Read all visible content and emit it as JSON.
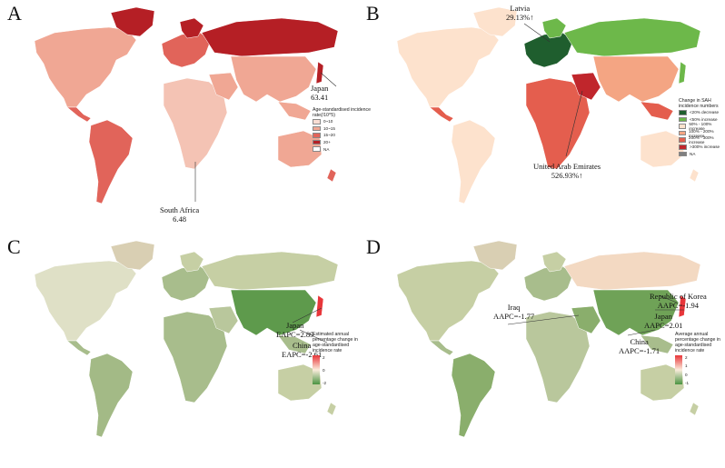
{
  "panels": {
    "a": {
      "label": "A",
      "legend": {
        "title": "Age-standardised incidence rate(/10^5)",
        "items": [
          {
            "label": "0~10",
            "color": "#f9ddd3"
          },
          {
            "label": "10~15",
            "color": "#f0a794"
          },
          {
            "label": "15~20",
            "color": "#e1645a"
          },
          {
            "label": "20+",
            "color": "#b51f25"
          },
          {
            "label": "NA",
            "color": "#ffffff"
          }
        ]
      },
      "annotations": [
        {
          "name": "Japan",
          "value": "63.41"
        },
        {
          "name": "South Africa",
          "value": "6.48"
        }
      ]
    },
    "b": {
      "label": "B",
      "legend": {
        "title": "Change in SAH incidence numbers",
        "items": [
          {
            "label": "<20% decrease",
            "color": "#1f5e2e"
          },
          {
            "label": "<50% increase",
            "color": "#6db84a"
          },
          {
            "label": "50% - 100% increase",
            "color": "#fde2cd"
          },
          {
            "label": "100% - 200% increase",
            "color": "#f4a583"
          },
          {
            "label": "200% - 300% increase",
            "color": "#e45e4e"
          },
          {
            "label": ">300% increase",
            "color": "#c0262c"
          },
          {
            "label": "NA",
            "color": "#808080"
          }
        ]
      },
      "annotations": [
        {
          "name": "Latvia",
          "value": "29.13%↑"
        },
        {
          "name": "United Arab Emirates",
          "value": "526.93%↑"
        }
      ]
    },
    "c": {
      "label": "C",
      "legend": {
        "title": "Estimated annual percentage change in age-standardised incidence rate",
        "ticks": [
          "2",
          "0",
          "-2"
        ],
        "color_high": "#e8363a",
        "color_mid": "#fbecdc",
        "color_low": "#4a9442"
      },
      "annotations": [
        {
          "name": "Japan",
          "value": "EAPC=2.89"
        },
        {
          "name": "China",
          "value": "EAPC=-2.61"
        }
      ]
    },
    "d": {
      "label": "D",
      "legend": {
        "title": "Average annual percentage change in age-standardised incidence rate",
        "ticks": [
          "2",
          "1",
          "0",
          "-1"
        ],
        "color_high": "#e8363a",
        "color_mid": "#fbecdc",
        "color_low": "#4a9442"
      },
      "annotations": [
        {
          "name": "Republic of Korea",
          "value": "AAPC=-1.94"
        },
        {
          "name": "Iraq",
          "value": "AAPC=-1.77"
        },
        {
          "name": "Japan",
          "value": "AAPC=2.01"
        },
        {
          "name": "China",
          "value": "AAPC=-1.71"
        }
      ]
    }
  }
}
